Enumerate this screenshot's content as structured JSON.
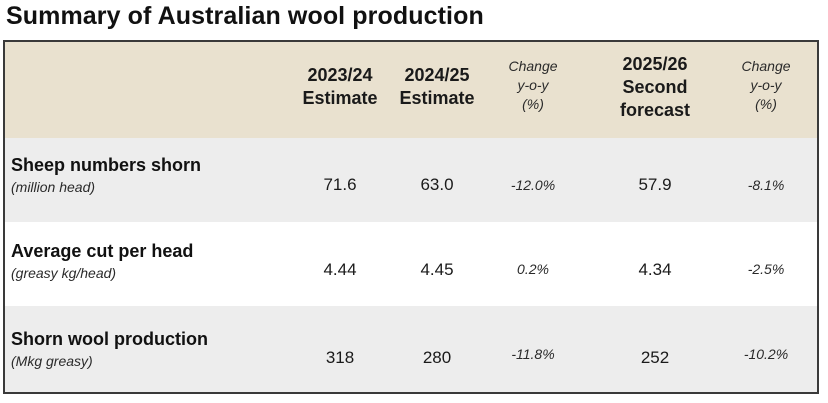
{
  "title": "Summary of Australian wool production",
  "colors": {
    "header_background": "#e9e1cf",
    "shaded_row": "#ededed",
    "border": "#3a3a3a"
  },
  "columns": [
    {
      "line1": "2023/24",
      "line2": "Estimate",
      "line3": ""
    },
    {
      "line1": "2024/25",
      "line2": "Estimate",
      "line3": ""
    },
    {
      "line1": "Change",
      "line2": "y-o-y",
      "line3": "(%)"
    },
    {
      "line1": "2025/26",
      "line2": "Second",
      "line3": "forecast"
    },
    {
      "line1": "Change",
      "line2": "y-o-y",
      "line3": "(%)"
    }
  ],
  "rows": [
    {
      "label": "Sheep numbers shorn",
      "unit": "(million head)",
      "values": [
        "71.6",
        "63.0",
        "-12.0%",
        "57.9",
        "-8.1%"
      ]
    },
    {
      "label": "Average cut per head",
      "unit": "(greasy kg/head)",
      "values": [
        "4.44",
        "4.45",
        "0.2%",
        "4.34",
        "-2.5%"
      ]
    },
    {
      "label": "Shorn wool production",
      "unit": "(Mkg greasy)",
      "values": [
        "318",
        "280",
        "-11.8%",
        "252",
        "-10.2%"
      ]
    }
  ]
}
